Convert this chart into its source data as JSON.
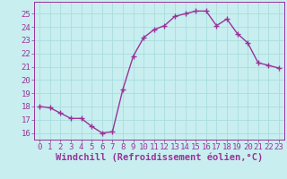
{
  "x": [
    0,
    1,
    2,
    3,
    4,
    5,
    6,
    7,
    8,
    9,
    10,
    11,
    12,
    13,
    14,
    15,
    16,
    17,
    18,
    19,
    20,
    21,
    22,
    23
  ],
  "y": [
    18.0,
    17.9,
    17.5,
    17.1,
    17.1,
    16.5,
    16.0,
    16.1,
    19.3,
    21.8,
    23.2,
    23.8,
    24.1,
    24.8,
    25.0,
    25.2,
    25.2,
    24.1,
    24.6,
    23.5,
    22.8,
    21.3,
    21.1,
    20.9
  ],
  "line_color": "#993399",
  "marker": "+",
  "marker_size": 4,
  "bg_color": "#c8eef0",
  "grid_color": "#aadddd",
  "xlabel": "Windchill (Refroidissement éolien,°C)",
  "xlim": [
    -0.5,
    23.5
  ],
  "ylim": [
    15.5,
    25.9
  ],
  "yticks": [
    16,
    17,
    18,
    19,
    20,
    21,
    22,
    23,
    24,
    25
  ],
  "xticks": [
    0,
    1,
    2,
    3,
    4,
    5,
    6,
    7,
    8,
    9,
    10,
    11,
    12,
    13,
    14,
    15,
    16,
    17,
    18,
    19,
    20,
    21,
    22,
    23
  ],
  "tick_color": "#993399",
  "xlabel_color": "#993399",
  "xlabel_fontsize": 7.5,
  "tick_fontsize": 6.5,
  "linewidth": 1.0,
  "markeredgewidth": 1.0
}
